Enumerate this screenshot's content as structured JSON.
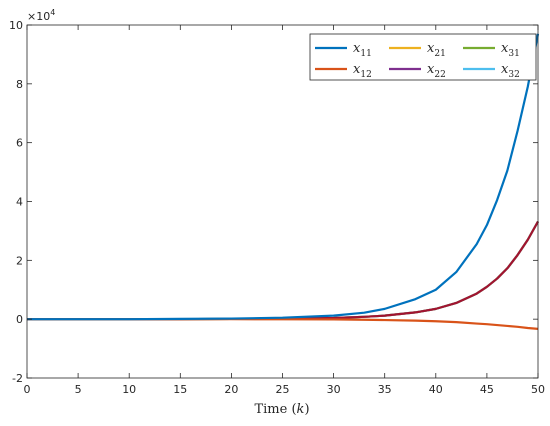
{
  "chart_data": {
    "type": "line",
    "title": "",
    "xlabel": "Time",
    "xlabel_var": "k",
    "ylabel": "",
    "xlim": [
      0,
      50
    ],
    "ylim": [
      -2,
      10
    ],
    "y_multiplier": "×10",
    "y_multiplier_exp": "4",
    "xticks": [
      0,
      5,
      10,
      15,
      20,
      25,
      30,
      35,
      40,
      45,
      50
    ],
    "yticks": [
      -2,
      0,
      2,
      4,
      6,
      8,
      10
    ],
    "grid": false,
    "legend_position": "top-right",
    "legend_columns": 3,
    "x": [
      0,
      5,
      10,
      15,
      20,
      25,
      30,
      33,
      35,
      38,
      40,
      42,
      44,
      45,
      46,
      47,
      48,
      49,
      50
    ],
    "series": [
      {
        "name": "x",
        "sub": "11",
        "color": "#0072BD",
        "values": [
          0,
          0,
          0,
          0.01,
          0.02,
          0.05,
          0.12,
          0.22,
          0.35,
          0.68,
          1.0,
          1.6,
          2.55,
          3.2,
          4.05,
          5.05,
          6.4,
          7.9,
          9.7
        ]
      },
      {
        "name": "x",
        "sub": "21",
        "color": "#EDB120",
        "values": [
          0,
          0,
          0,
          0,
          0.01,
          0.02,
          0.04,
          0.08,
          0.12,
          0.23,
          0.35,
          0.55,
          0.87,
          1.1,
          1.38,
          1.73,
          2.18,
          2.7,
          3.32
        ]
      },
      {
        "name": "x",
        "sub": "31",
        "color": "#77AC30",
        "values": [
          0,
          0,
          0,
          0,
          0.01,
          0.02,
          0.04,
          0.08,
          0.12,
          0.23,
          0.35,
          0.55,
          0.87,
          1.1,
          1.38,
          1.73,
          2.18,
          2.7,
          3.32
        ]
      },
      {
        "name": "x",
        "sub": "12",
        "color": "#D95319",
        "values": [
          0,
          0,
          0,
          0,
          0,
          -0.005,
          -0.01,
          -0.02,
          -0.03,
          -0.05,
          -0.07,
          -0.1,
          -0.15,
          -0.17,
          -0.2,
          -0.23,
          -0.26,
          -0.3,
          -0.33
        ]
      },
      {
        "name": "x",
        "sub": "22",
        "color": "#7E2F8E",
        "values": [
          0,
          0,
          0,
          0,
          0.01,
          0.02,
          0.04,
          0.08,
          0.12,
          0.23,
          0.35,
          0.55,
          0.87,
          1.1,
          1.38,
          1.73,
          2.18,
          2.7,
          3.32
        ]
      },
      {
        "name": "x",
        "sub": "32",
        "color": "#4DBEEE",
        "values": [
          0,
          0,
          0,
          0,
          0.01,
          0.02,
          0.04,
          0.08,
          0.12,
          0.23,
          0.35,
          0.55,
          0.87,
          1.1,
          1.38,
          1.73,
          2.18,
          2.7,
          3.32
        ]
      }
    ],
    "overlap_color": "#A2142F"
  }
}
